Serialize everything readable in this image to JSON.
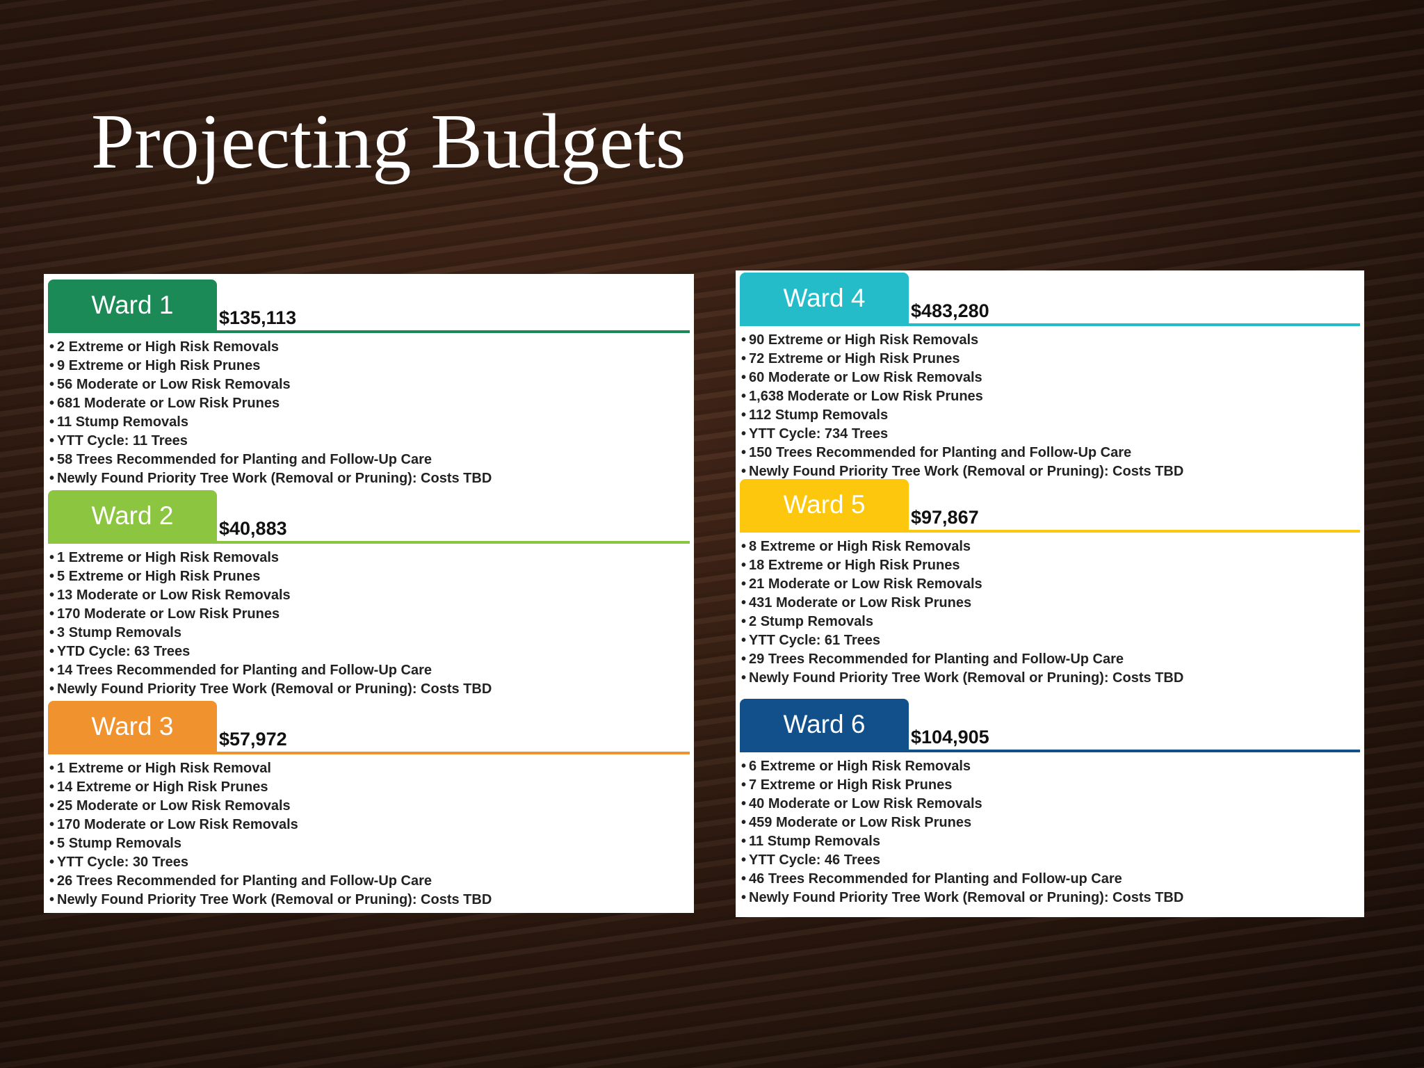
{
  "header": {
    "title": "Projecting Budgets"
  },
  "panels": [
    {
      "wards": [
        {
          "name": "Ward 1",
          "amount": "$135,113",
          "items": [
            "2 Extreme or High Risk Removals",
            "9 Extreme or High Risk Prunes",
            "56 Moderate or Low Risk Removals",
            "681 Moderate or Low Risk Prunes",
            "11 Stump Removals",
            "YTT Cycle: 11 Trees",
            "58 Trees Recommended for Planting and Follow-Up Care",
            "Newly Found Priority Tree Work (Removal or Pruning): Costs TBD"
          ]
        },
        {
          "name": "Ward 2",
          "amount": "$40,883",
          "items": [
            "1 Extreme or High Risk Removals",
            "5 Extreme or High Risk Prunes",
            "13 Moderate or Low Risk Removals",
            "170 Moderate or Low Risk Prunes",
            "3 Stump Removals",
            "YTD Cycle: 63 Trees",
            "14 Trees Recommended for Planting and Follow-Up Care",
            "Newly Found Priority Tree Work (Removal or Pruning): Costs TBD"
          ]
        },
        {
          "name": "Ward 3",
          "amount": "$57,972",
          "items": [
            "1 Extreme or High Risk Removal",
            "14 Extreme or High Risk Prunes",
            "25 Moderate or Low Risk Removals",
            "170 Moderate or Low Risk Removals",
            "5 Stump Removals",
            "YTT Cycle: 30 Trees",
            "26 Trees Recommended for Planting and Follow-Up Care",
            "Newly Found Priority Tree Work (Removal or Pruning): Costs TBD"
          ]
        }
      ]
    },
    {
      "wards": [
        {
          "name": "Ward 4",
          "amount": "$483,280",
          "items": [
            "90 Extreme or High Risk Removals",
            "72 Extreme or High Risk Prunes",
            "60 Moderate or Low Risk Removals",
            "1,638 Moderate or Low Risk Prunes",
            "112 Stump Removals",
            "YTT Cycle: 734 Trees",
            "150 Trees Recommended for Planting and Follow-Up Care",
            "Newly Found Priority Tree Work (Removal or Pruning): Costs TBD"
          ]
        },
        {
          "name": "Ward 5",
          "amount": "$97,867",
          "items": [
            "8 Extreme or High Risk Removals",
            "18 Extreme or High Risk Prunes",
            "21 Moderate or Low Risk Removals",
            "431 Moderate or Low Risk Prunes",
            "2 Stump Removals",
            "YTT Cycle: 61 Trees",
            "29 Trees Recommended for Planting and Follow-Up Care",
            "Newly Found Priority Tree Work (Removal or Pruning): Costs TBD"
          ]
        },
        {
          "name": "Ward 6",
          "amount": "$104,905",
          "items": [
            "6 Extreme or High Risk Removals",
            "7 Extreme or High Risk Prunes",
            "40 Moderate or Low Risk Removals",
            "459 Moderate or Low Risk Prunes",
            "11 Stump Removals",
            "YTT Cycle: 46 Trees",
            "46 Trees Recommended for Planting and Follow-up Care",
            "Newly Found Priority Tree Work (Removal or Pruning): Costs TBD"
          ]
        }
      ]
    }
  ]
}
